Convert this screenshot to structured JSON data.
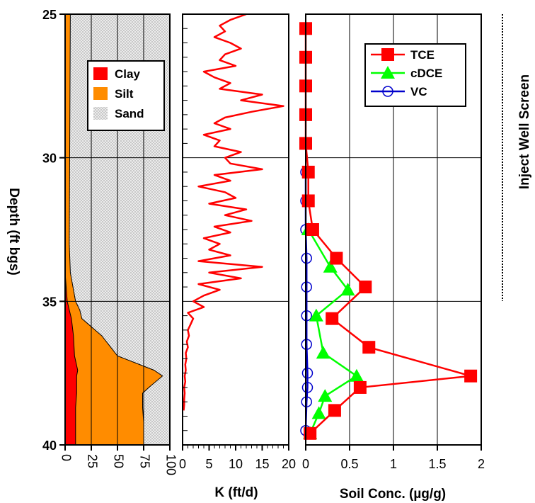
{
  "colors": {
    "clay": "#ff0000",
    "silt": "#ff8c00",
    "sand": "#d9d9d9",
    "k_line": "#ff0000",
    "tce": "#ff0000",
    "cdce": "#00ff00",
    "vc": "#0000cc",
    "grid": "#000000"
  },
  "depth_axis": {
    "label": "Depth (ft bgs)",
    "range": [
      25,
      40
    ],
    "ticks": [
      "25",
      "30",
      "35",
      "40"
    ]
  },
  "chart_data": [
    {
      "type": "area",
      "name": "soil-texture",
      "xlim": [
        0,
        100
      ],
      "xticks": [
        "0",
        "25",
        "50",
        "75",
        "100"
      ],
      "legend": [
        "Clay",
        "Silt",
        "Sand"
      ],
      "legend_placement": "top-center",
      "grid": true,
      "depth": [
        25,
        33,
        34,
        35,
        35.3,
        35.6,
        36.2,
        36.9,
        37.4,
        37.6,
        38.0,
        38.2,
        38.7,
        39.2,
        40
      ],
      "clay_pct": [
        0,
        0,
        0,
        2,
        4,
        6,
        8,
        9,
        12,
        11,
        11,
        11,
        10,
        10,
        10
      ],
      "silt_cumulative_pct": [
        5,
        4,
        5,
        10,
        14,
        16,
        35,
        50,
        85,
        93,
        80,
        74,
        74,
        75,
        75
      ]
    },
    {
      "type": "line",
      "name": "hydraulic-conductivity",
      "xlabel": "K (ft/d)",
      "xlim": [
        0,
        20
      ],
      "xticks": [
        "0",
        "5",
        "10",
        "15",
        "20"
      ],
      "grid": true,
      "depth": [
        25.0,
        25.2,
        25.4,
        25.6,
        25.8,
        26.0,
        26.2,
        26.4,
        26.6,
        26.8,
        27.0,
        27.2,
        27.4,
        27.6,
        27.8,
        28.0,
        28.2,
        28.4,
        28.6,
        28.8,
        29.0,
        29.2,
        29.4,
        29.6,
        29.8,
        30.0,
        30.2,
        30.4,
        30.6,
        30.8,
        31.0,
        31.2,
        31.4,
        31.6,
        31.8,
        32.0,
        32.2,
        32.4,
        32.6,
        32.8,
        33.0,
        33.2,
        33.4,
        33.6,
        33.8,
        34.0,
        34.2,
        34.4,
        34.6,
        34.8,
        35.0,
        35.2,
        35.4,
        35.6,
        35.8,
        36.0,
        36.2,
        36.4,
        36.6,
        36.8,
        37.0,
        37.2,
        37.4,
        37.6,
        37.8,
        38.0,
        38.2,
        38.4,
        38.6,
        38.8
      ],
      "k": [
        12,
        9,
        7,
        8,
        6,
        9,
        11,
        8,
        7,
        10,
        4,
        6,
        9,
        7,
        15,
        11,
        19,
        13,
        8,
        6,
        9,
        4,
        7,
        6,
        11,
        8,
        9,
        15,
        6,
        9,
        3,
        8,
        10,
        5,
        12,
        8,
        13,
        6,
        9,
        4,
        7,
        5,
        9,
        3,
        15,
        5,
        11,
        3,
        7,
        4,
        2,
        4,
        1,
        2,
        1.5,
        1,
        1.2,
        0.8,
        1,
        0.6,
        0.7,
        0.5,
        0.6,
        0.4,
        0.5,
        0.3,
        0.4,
        0.3,
        0.3,
        0.2
      ]
    },
    {
      "type": "line",
      "name": "soil-concentration",
      "xlabel": "Soil Conc. (µg/g)",
      "xlim": [
        0,
        2
      ],
      "xticks": [
        "0",
        "0.5",
        "1",
        "1.5",
        "2"
      ],
      "grid": true,
      "legend_placement": "top-right",
      "series": [
        {
          "name": "TCE",
          "marker": "square",
          "points": [
            [
              0.0,
              25.5
            ],
            [
              0.0,
              26.5
            ],
            [
              0.0,
              27.5
            ],
            [
              0.0,
              28.5
            ],
            [
              0.0,
              29.5
            ],
            [
              0.03,
              30.5
            ],
            [
              0.03,
              31.5
            ],
            [
              0.08,
              32.5
            ],
            [
              0.35,
              33.5
            ],
            [
              0.68,
              34.5
            ],
            [
              0.3,
              35.6
            ],
            [
              0.72,
              36.6
            ],
            [
              1.88,
              37.6
            ],
            [
              0.62,
              38.0
            ],
            [
              0.33,
              38.8
            ],
            [
              0.05,
              39.6
            ]
          ]
        },
        {
          "name": "cDCE",
          "marker": "triangle",
          "points": [
            [
              0.03,
              32.5
            ],
            [
              0.28,
              33.8
            ],
            [
              0.48,
              34.6
            ],
            [
              0.12,
              35.5
            ],
            [
              0.2,
              36.8
            ],
            [
              0.58,
              37.6
            ],
            [
              0.22,
              38.3
            ],
            [
              0.15,
              38.9
            ],
            [
              0.05,
              39.6
            ]
          ]
        },
        {
          "name": "VC",
          "marker": "circle",
          "points": [
            [
              0.0,
              30.5
            ],
            [
              0.0,
              31.5
            ],
            [
              0.0,
              32.5
            ],
            [
              0.01,
              33.5
            ],
            [
              0.01,
              34.5
            ],
            [
              0.01,
              35.5
            ],
            [
              0.01,
              36.5
            ],
            [
              0.02,
              37.5
            ],
            [
              0.02,
              38.0
            ],
            [
              0.01,
              38.5
            ],
            [
              0.0,
              39.5
            ]
          ]
        }
      ]
    }
  ],
  "annotation": {
    "text": "Inject Well Screen",
    "range": [
      25,
      35
    ]
  }
}
